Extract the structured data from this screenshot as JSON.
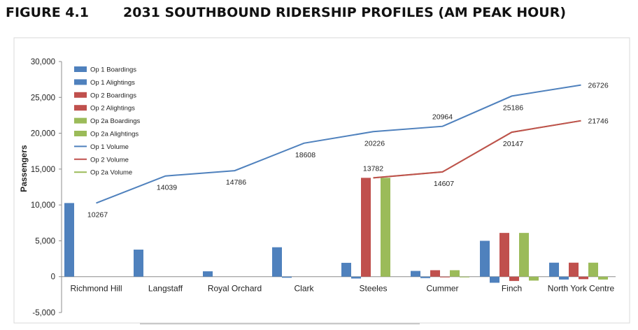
{
  "figure": {
    "number": "FIGURE 4.1",
    "title": "2031 SOUTHBOUND RIDERSHIP PROFILES (AM PEAK HOUR)"
  },
  "chart_data": {
    "type": "bar",
    "ylabel": "Passengers",
    "ylim": [
      -5000,
      30000
    ],
    "yticks": [
      -5000,
      0,
      5000,
      10000,
      15000,
      20000,
      25000,
      30000
    ],
    "ytick_labels": [
      "-5,000",
      "0",
      "5,000",
      "10,000",
      "15,000",
      "20,000",
      "25,000",
      "30,000"
    ],
    "grid": false,
    "legend_position": "top-left",
    "categories": [
      "Richmond Hill",
      "Langstaff",
      "Royal Orchard",
      "Clark",
      "Steeles",
      "Cummer",
      "Finch",
      "North York Centre"
    ],
    "series": [
      {
        "name": "Op 1 Boardings",
        "type": "bar",
        "color": "#4f81bd",
        "values": [
          10267,
          3772,
          747,
          4100,
          1930,
          800,
          5000,
          1950
        ]
      },
      {
        "name": "Op 1 Alightings",
        "type": "bar",
        "color": "#4f81bd",
        "values": [
          0,
          0,
          0,
          -150,
          -260,
          -200,
          -850,
          -400
        ]
      },
      {
        "name": "Op 2 Boardings",
        "type": "bar",
        "color": "#c0504d",
        "values": [
          0,
          0,
          0,
          0,
          13782,
          900,
          6100,
          1950
        ]
      },
      {
        "name": "Op 2 Alightings",
        "type": "bar",
        "color": "#c0504d",
        "values": [
          0,
          0,
          0,
          0,
          0,
          -100,
          -600,
          -350
        ]
      },
      {
        "name": "Op 2a Boardings",
        "type": "bar",
        "color": "#9bbb59",
        "values": [
          0,
          0,
          0,
          0,
          13782,
          900,
          6100,
          1950
        ]
      },
      {
        "name": "Op 2a Alightings",
        "type": "bar",
        "color": "#9bbb59",
        "values": [
          0,
          0,
          0,
          0,
          0,
          -100,
          -550,
          -400
        ]
      },
      {
        "name": "Op 1 Volume",
        "type": "line",
        "color": "#4f81bd",
        "x": [
          0.5,
          1.5,
          2.5,
          3.5,
          4.5,
          5.5,
          6.5,
          7.5
        ],
        "values": [
          10267,
          14039,
          14786,
          18608,
          20226,
          20964,
          25186,
          26726
        ]
      },
      {
        "name": "Op 2 Volume",
        "type": "line",
        "color": "#c0504d",
        "x": [
          4.5,
          5.5,
          6.5,
          7.5
        ],
        "values": [
          13782,
          14607,
          20147,
          21746
        ]
      },
      {
        "name": "Op 2a Volume",
        "type": "line",
        "color": "#9bbb59",
        "x": [
          4.5,
          5.5,
          6.5,
          7.5
        ],
        "values": [
          13782,
          14607,
          20147,
          21746
        ]
      }
    ],
    "data_labels": [
      {
        "text": "10267",
        "x": 0.5,
        "y": 10267,
        "pos": "below"
      },
      {
        "text": "14039",
        "x": 1.5,
        "y": 14039,
        "pos": "below"
      },
      {
        "text": "14786",
        "x": 2.5,
        "y": 14786,
        "pos": "below"
      },
      {
        "text": "18608",
        "x": 3.5,
        "y": 18608,
        "pos": "below"
      },
      {
        "text": "20226",
        "x": 4.5,
        "y": 20226,
        "pos": "below"
      },
      {
        "text": "20964",
        "x": 5.5,
        "y": 20964,
        "pos": "above"
      },
      {
        "text": "25186",
        "x": 6.5,
        "y": 25186,
        "pos": "below"
      },
      {
        "text": "26726",
        "x": 7.5,
        "y": 26726,
        "pos": "right"
      },
      {
        "text": "13782",
        "x": 4.5,
        "y": 13782,
        "pos": "above"
      },
      {
        "text": "14607",
        "x": 5.5,
        "y": 14607,
        "pos": "below"
      },
      {
        "text": "20147",
        "x": 6.5,
        "y": 20147,
        "pos": "below"
      },
      {
        "text": "21746",
        "x": 7.5,
        "y": 21746,
        "pos": "right"
      }
    ]
  }
}
